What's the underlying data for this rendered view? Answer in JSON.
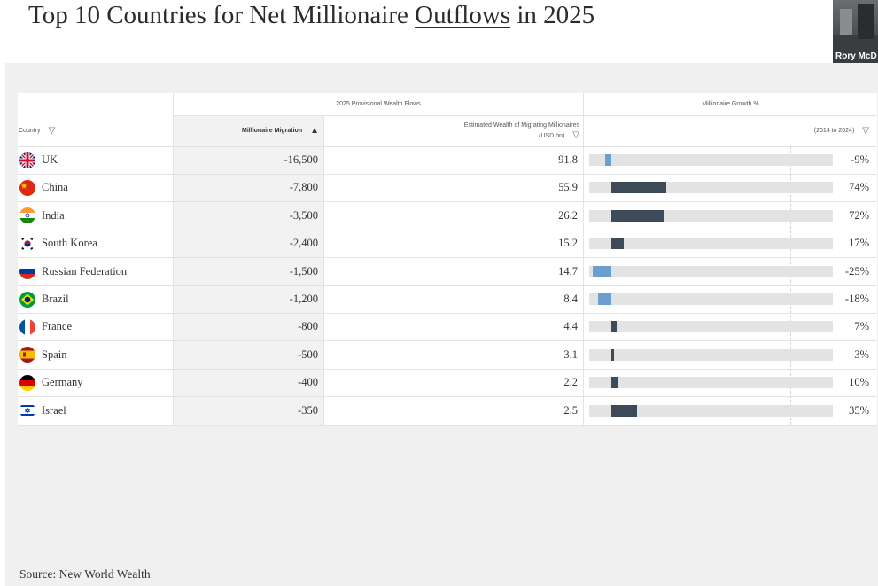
{
  "slide": {
    "title_before": "Top 10 Countries for Net Millionaire ",
    "title_underlined": "Outflows",
    "title_after": " in 2025",
    "source": "Source: New World Wealth"
  },
  "video": {
    "name": "Rory McD"
  },
  "colors": {
    "positive_bar": "#3d4a57",
    "negative_bar": "#6a9fd0",
    "track": "#e3e3e3"
  },
  "table": {
    "group_headers": {
      "flows": "2025 Provisional Wealth Flows",
      "growth": "Millionaire Growth %"
    },
    "columns": {
      "country": "Country",
      "migration": "Millionaire Migration",
      "wealth": "Estimated Wealth of Migrating Millionaires",
      "wealth_unit": "(USD bn)",
      "growth": "(2014 to 2024)"
    },
    "sort_icons": {
      "filter": "▽",
      "sorted_asc": "▲"
    }
  },
  "chart_data": {
    "type": "table",
    "title": "Top 10 Countries for Net Millionaire Outflows in 2025",
    "columns": [
      "Country",
      "Millionaire Migration",
      "Estimated Wealth of Migrating Millionaires (USD bn)",
      "Millionaire Growth % (2014 to 2024)"
    ],
    "growth_axis": [
      -30,
      300
    ],
    "rows": [
      {
        "country": "UK",
        "flag": "uk",
        "migration": "-16,500",
        "wealth": "91.8",
        "growth": -9,
        "growth_label": "-9%"
      },
      {
        "country": "China",
        "flag": "china",
        "migration": "-7,800",
        "wealth": "55.9",
        "growth": 74,
        "growth_label": "74%"
      },
      {
        "country": "India",
        "flag": "india",
        "migration": "-3,500",
        "wealth": "26.2",
        "growth": 72,
        "growth_label": "72%"
      },
      {
        "country": "South Korea",
        "flag": "south-korea",
        "migration": "-2,400",
        "wealth": "15.2",
        "growth": 17,
        "growth_label": "17%"
      },
      {
        "country": "Russian Federation",
        "flag": "russia",
        "migration": "-1,500",
        "wealth": "14.7",
        "growth": -25,
        "growth_label": "-25%"
      },
      {
        "country": "Brazil",
        "flag": "brazil",
        "migration": "-1,200",
        "wealth": "8.4",
        "growth": -18,
        "growth_label": "-18%"
      },
      {
        "country": "France",
        "flag": "france",
        "migration": "-800",
        "wealth": "4.4",
        "growth": 7,
        "growth_label": "7%"
      },
      {
        "country": "Spain",
        "flag": "spain",
        "migration": "-500",
        "wealth": "3.1",
        "growth": 3,
        "growth_label": "3%"
      },
      {
        "country": "Germany",
        "flag": "germany",
        "migration": "-400",
        "wealth": "2.2",
        "growth": 10,
        "growth_label": "10%"
      },
      {
        "country": "Israel",
        "flag": "israel",
        "migration": "-350",
        "wealth": "2.5",
        "growth": 35,
        "growth_label": "35%"
      }
    ]
  }
}
